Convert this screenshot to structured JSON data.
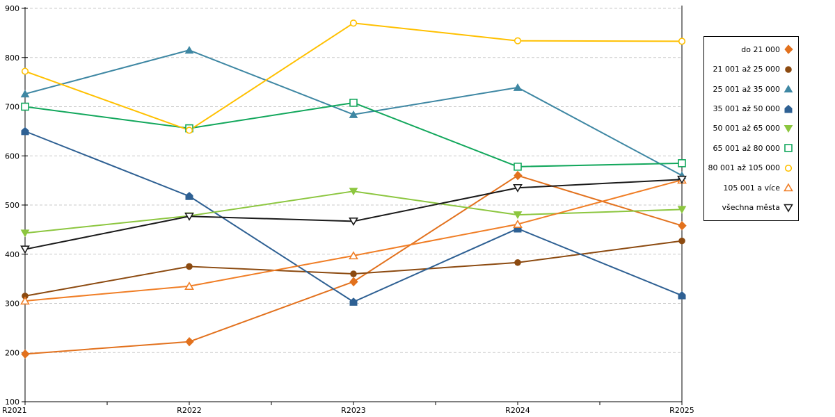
{
  "chart_data": {
    "type": "line",
    "title": "",
    "xlabel": "",
    "ylabel": "",
    "categories": [
      "R2021",
      "R2022",
      "R2023",
      "R2024",
      "R2025"
    ],
    "y_ticks": [
      "100",
      "200",
      "300",
      "400",
      "500",
      "600",
      "700",
      "800",
      "900"
    ],
    "ylim": [
      100,
      900
    ],
    "grid": "horizontal-dashed",
    "legend_position": "right",
    "series": [
      {
        "name": "do 21 000",
        "color": "#E2711D",
        "marker": "diamond",
        "open": false,
        "values": [
          197,
          222,
          344,
          560,
          458
        ]
      },
      {
        "name": "21 001 až 25 000",
        "color": "#8C4A10",
        "marker": "circle",
        "open": false,
        "values": [
          315,
          375,
          360,
          383,
          427
        ]
      },
      {
        "name": "25 001 až 35 000",
        "color": "#3E87A3",
        "marker": "tri-up",
        "open": false,
        "values": [
          726,
          815,
          684,
          739,
          560
        ]
      },
      {
        "name": "35 001 až 50 000",
        "color": "#2E6093",
        "marker": "pentagon",
        "open": false,
        "values": [
          650,
          518,
          303,
          452,
          316
        ]
      },
      {
        "name": "50 001 až 65 000",
        "color": "#8CC63F",
        "marker": "tri-down",
        "open": false,
        "values": [
          443,
          478,
          528,
          480,
          491
        ]
      },
      {
        "name": "65 001 až 80 000",
        "color": "#12A75C",
        "marker": "square",
        "open": true,
        "values": [
          700,
          656,
          708,
          578,
          585
        ]
      },
      {
        "name": "80 001 až 105 000",
        "color": "#FFC000",
        "marker": "circle",
        "open": true,
        "values": [
          772,
          652,
          870,
          834,
          833
        ]
      },
      {
        "name": "105 001 a více",
        "color": "#F07E26",
        "marker": "tri-up",
        "open": true,
        "values": [
          305,
          335,
          397,
          461,
          551
        ]
      },
      {
        "name": "všechna města",
        "color": "#1A1A1A",
        "marker": "tri-down",
        "open": true,
        "values": [
          410,
          477,
          467,
          535,
          552
        ]
      }
    ],
    "colors": {
      "background": "#FFFFFF",
      "gridline": "#C9C9C9",
      "axis": "#000000",
      "text": "#000000"
    }
  }
}
